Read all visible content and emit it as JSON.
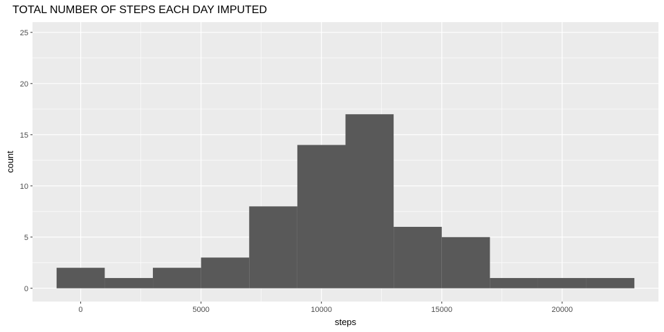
{
  "chart_data": {
    "type": "bar",
    "title": "TOTAL NUMBER OF STEPS EACH DAY IMPUTED",
    "xlabel": "steps",
    "ylabel": "count",
    "xlim": [
      -2000,
      24000
    ],
    "ylim": [
      -1.3,
      26
    ],
    "x_ticks": [
      0,
      5000,
      10000,
      15000,
      20000
    ],
    "x_tick_labels": [
      "0",
      "5000",
      "10000",
      "15000",
      "20000"
    ],
    "y_ticks": [
      0,
      5,
      10,
      15,
      20,
      25
    ],
    "y_tick_labels": [
      "0",
      "5",
      "10",
      "15",
      "20",
      "25"
    ],
    "bin_edges": [
      -1000,
      1000,
      3000,
      5000,
      7000,
      9000,
      11000,
      13000,
      15000,
      17000,
      19000,
      21000,
      23000
    ],
    "counts": [
      2,
      1,
      2,
      3,
      8,
      14,
      17,
      6,
      5,
      1,
      1,
      1
    ],
    "grid": true,
    "colors": {
      "panel": "#ebebeb",
      "grid": "#ffffff",
      "bar": "#595959"
    }
  }
}
